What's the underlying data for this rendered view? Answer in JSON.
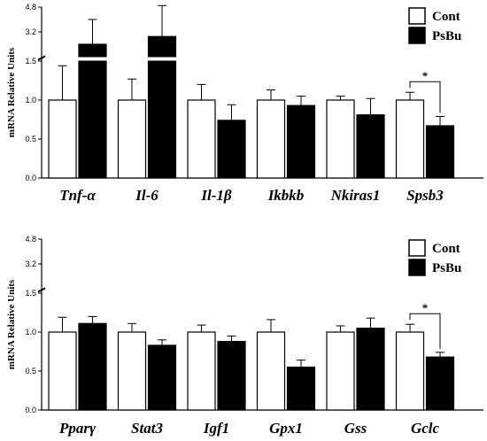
{
  "chart_data": [
    {
      "type": "bar",
      "ylabel": "mRNA Relative Units",
      "categories": [
        "Tnf-α",
        "Il-6",
        "Il-1β",
        "Ikbkb",
        "Nkiras1",
        "Spsb3"
      ],
      "series": [
        {
          "name": "Cont",
          "color": "#ffffff",
          "values": [
            1.0,
            1.0,
            1.0,
            1.0,
            1.0,
            1.0
          ],
          "errors": [
            0.44,
            0.27,
            0.2,
            0.13,
            0.05,
            0.1
          ]
        },
        {
          "name": "PsBu",
          "color": "#000000",
          "values": [
            2.4,
            2.9,
            0.74,
            0.93,
            0.81,
            0.67
          ],
          "errors": [
            1.6,
            2.0,
            0.2,
            0.12,
            0.21,
            0.12
          ]
        }
      ],
      "yticks_lower": [
        "0.0",
        "0.5",
        "1.0",
        "1.5"
      ],
      "yticks_upper": [
        "3.2",
        "4.8"
      ],
      "ylim_lower": [
        0,
        1.5
      ],
      "ylim_upper": [
        1.6,
        4.8
      ],
      "significance": [
        {
          "category_index": 5,
          "label": "*"
        }
      ],
      "legend": "top-right"
    },
    {
      "type": "bar",
      "ylabel": "mRNA Relative Units",
      "categories": [
        "Pparγ",
        "Stat3",
        "Igf1",
        "Gpx1",
        "Gss",
        "Gclc"
      ],
      "series": [
        {
          "name": "Cont",
          "color": "#ffffff",
          "values": [
            1.0,
            1.0,
            1.0,
            1.0,
            1.0,
            1.0
          ],
          "errors": [
            0.19,
            0.11,
            0.09,
            0.16,
            0.08,
            0.1
          ]
        },
        {
          "name": "PsBu",
          "color": "#000000",
          "values": [
            1.11,
            0.83,
            0.88,
            0.55,
            1.05,
            0.68
          ],
          "errors": [
            0.09,
            0.07,
            0.07,
            0.09,
            0.13,
            0.06
          ]
        }
      ],
      "yticks_lower": [
        "0.0",
        "0.5",
        "1.0",
        "1.5"
      ],
      "yticks_upper": [
        "3.2",
        "4.8"
      ],
      "ylim_lower": [
        0,
        1.5
      ],
      "ylim_upper": [
        1.6,
        4.8
      ],
      "significance": [
        {
          "category_index": 5,
          "label": "*"
        }
      ],
      "legend": "top-right"
    }
  ]
}
